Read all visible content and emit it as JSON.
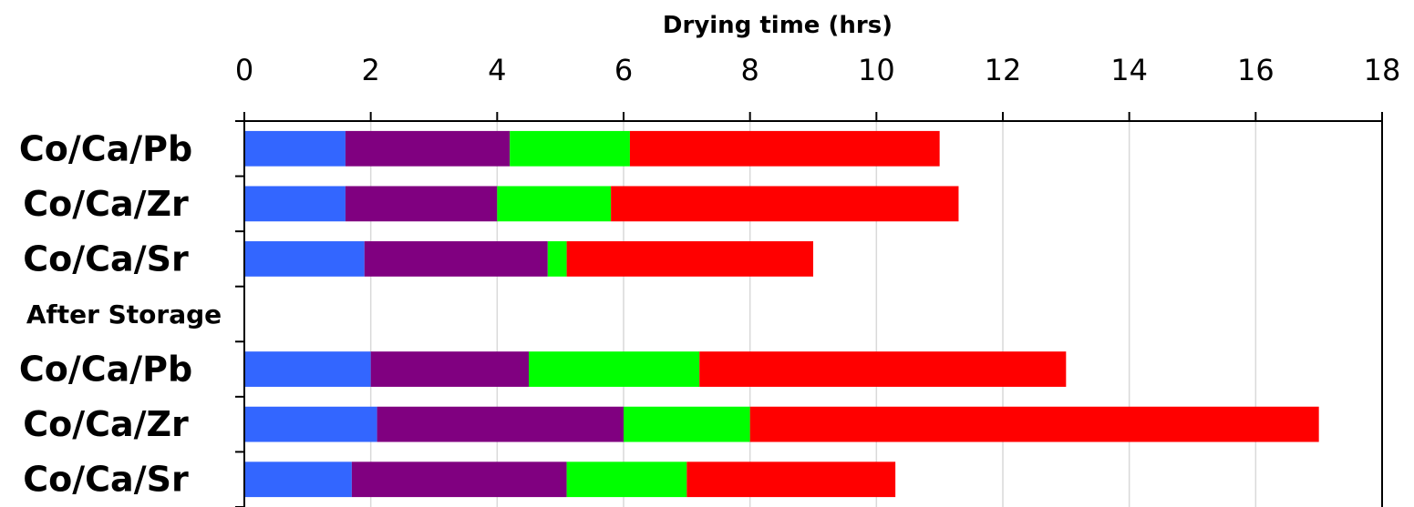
{
  "chart_data": {
    "type": "bar",
    "orientation": "horizontal",
    "stacked": true,
    "xlabel": "Drying time (hrs)",
    "xlim": [
      0,
      18
    ],
    "x_ticks": [
      "0",
      "2",
      "4",
      "6",
      "8",
      "10",
      "12",
      "14",
      "16",
      "18"
    ],
    "grid": true,
    "categories": [
      "Co/Ca/Pb",
      "Co/Ca/Zr",
      "Co/Ca/Sr",
      "After Storage",
      "Co/Ca/Pb",
      "Co/Ca/Zr",
      "Co/Ca/Sr"
    ],
    "series": [
      {
        "color": "#3366ff",
        "values": [
          1.6,
          1.6,
          1.9,
          null,
          2.0,
          2.1,
          1.7
        ]
      },
      {
        "color": "#800080",
        "values": [
          2.6,
          2.4,
          2.9,
          null,
          2.5,
          3.9,
          3.4
        ]
      },
      {
        "color": "#00ff00",
        "values": [
          1.9,
          1.8,
          0.3,
          null,
          2.7,
          2.0,
          1.9
        ]
      },
      {
        "color": "#ff0000",
        "values": [
          4.9,
          5.5,
          3.9,
          null,
          5.8,
          9.0,
          3.3
        ]
      }
    ]
  }
}
